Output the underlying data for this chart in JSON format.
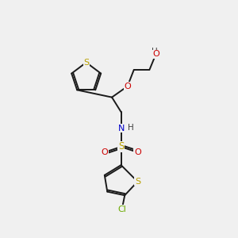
{
  "bg_color": "#f0f0f0",
  "bond_color": "#1a1a1a",
  "atom_colors": {
    "S": "#b8a000",
    "O": "#cc0000",
    "N": "#0000cc",
    "Cl": "#6aaa00",
    "H": "#404040"
  },
  "lw": 1.4,
  "fs": 7.5
}
